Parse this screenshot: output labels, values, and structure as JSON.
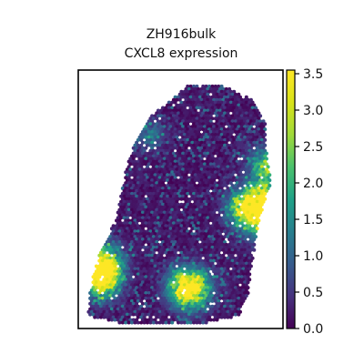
{
  "chart_data": {
    "type": "scatter",
    "title_line1": "ZH916bulk",
    "title_line2": "CXCL8 expression",
    "xlabel": "",
    "ylabel": "",
    "axis_ticks_visible": false,
    "grid": false,
    "legend": "none",
    "colormap": "viridis",
    "colorbar": {
      "placement": "right",
      "range": [
        0.0,
        3.55
      ],
      "ticks": [
        0.0,
        0.5,
        1.0,
        1.5,
        2.0,
        2.5,
        3.0,
        3.5
      ],
      "tick_labels": [
        "0.0",
        "0.5",
        "1.0",
        "1.5",
        "2.0",
        "2.5",
        "3.0",
        "3.5"
      ]
    },
    "hotspots": [
      {
        "x": 0.88,
        "y": 0.43,
        "value": 3.0
      },
      {
        "x": 0.91,
        "y": 0.5,
        "value": 2.7
      },
      {
        "x": 0.93,
        "y": 0.63,
        "value": 2.5
      },
      {
        "x": 0.56,
        "y": 0.15,
        "value": 2.8
      },
      {
        "x": 0.52,
        "y": 0.16,
        "value": 2.4
      },
      {
        "x": 0.12,
        "y": 0.25,
        "value": 2.9
      },
      {
        "x": 0.11,
        "y": 0.22,
        "value": 2.3
      },
      {
        "x": 0.12,
        "y": 0.17,
        "value": 2.0
      },
      {
        "x": 0.8,
        "y": 0.47,
        "value": 2.0
      },
      {
        "x": 0.35,
        "y": 0.75,
        "value": 1.2
      }
    ],
    "colors": {
      "viridis_low": "#440154",
      "viridis_mid": "#21918c",
      "viridis_high": "#fde725",
      "axes": "#000000"
    }
  }
}
